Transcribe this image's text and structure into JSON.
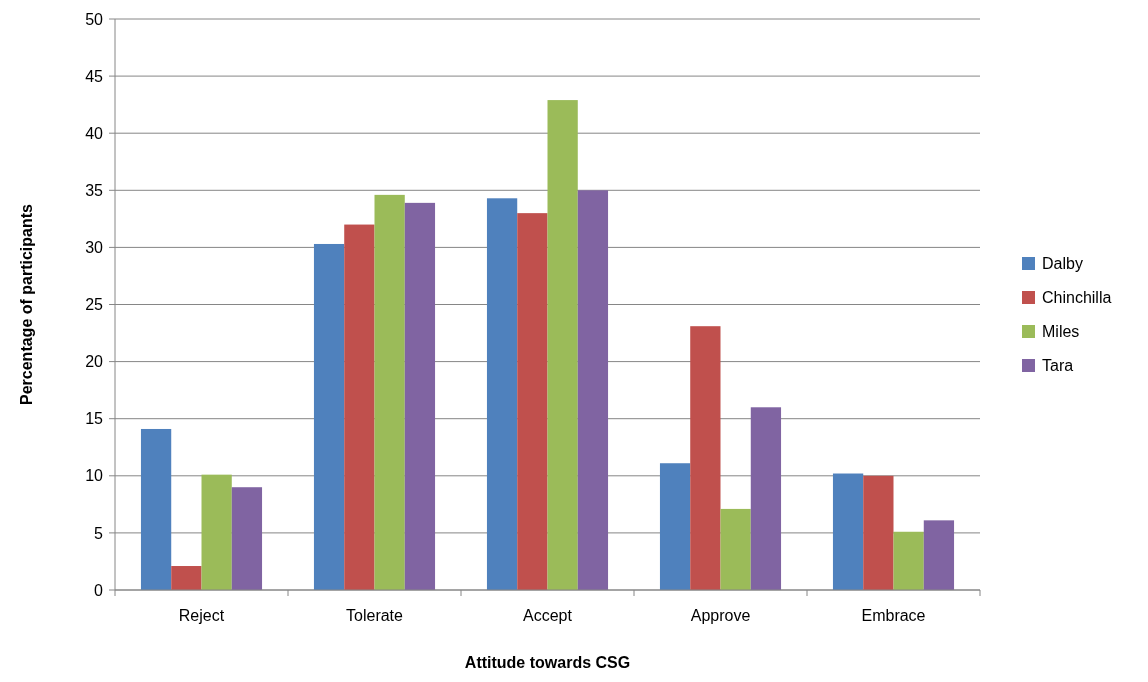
{
  "chart_data": {
    "type": "bar",
    "xlabel": "Attitude towards CSG",
    "ylabel": "Percentage of participants",
    "categories": [
      "Reject",
      "Tolerate",
      "Accept",
      "Approve",
      "Embrace"
    ],
    "series": [
      {
        "name": "Dalby",
        "color": "#4f81bd",
        "values": [
          14.1,
          30.3,
          34.3,
          11.1,
          10.2
        ]
      },
      {
        "name": "Chinchilla",
        "color": "#c0504d",
        "values": [
          2.1,
          32,
          33,
          23.1,
          10
        ]
      },
      {
        "name": "Miles",
        "color": "#9bbb59",
        "values": [
          10.1,
          34.6,
          42.9,
          7.1,
          5.1
        ]
      },
      {
        "name": "Tara",
        "color": "#8064a2",
        "values": [
          9,
          33.9,
          35,
          16,
          6.1
        ]
      }
    ],
    "ylim": [
      0,
      50
    ],
    "yticks": [
      0,
      5,
      10,
      15,
      20,
      25,
      30,
      35,
      40,
      45,
      50
    ],
    "grid": "y",
    "legend": "right"
  }
}
